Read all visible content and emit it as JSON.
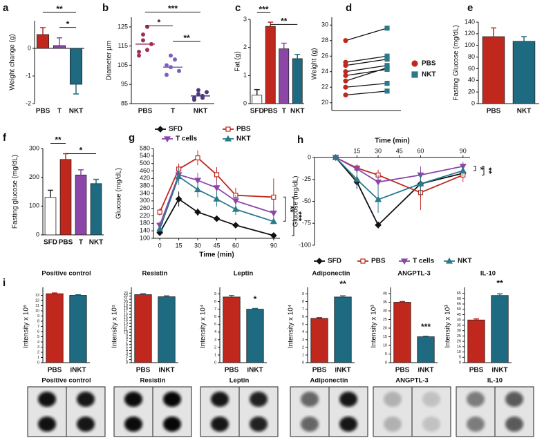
{
  "chart_data": [
    {
      "type": "bar",
      "label": "a",
      "ylabel": "Weight change (g)",
      "categories": [
        "PBS",
        "T",
        "NKT"
      ],
      "values": [
        0.5,
        0.1,
        -1.3
      ],
      "errors": [
        0.25,
        0.28,
        0.35
      ],
      "colors": [
        "#c0281e",
        "#8b46a8",
        "#1e6a80"
      ],
      "ylim": [
        -2,
        1
      ],
      "yticks": [
        -2,
        -1,
        0
      ],
      "annotations": [
        "**",
        "*"
      ]
    },
    {
      "type": "dot",
      "label": "b",
      "ylabel": "Diameter µm",
      "categories": [
        "PBS",
        "T",
        "NKT"
      ],
      "values": [
        [
          112,
          118,
          125,
          116,
          110,
          121,
          113
        ],
        [
          100,
          104,
          108,
          102,
          105,
          110
        ],
        [
          88,
          90,
          89,
          91,
          87,
          92,
          88
        ]
      ],
      "means": [
        116,
        104,
        89
      ],
      "colors": [
        "#a0305a",
        "#7b5fbf",
        "#4b3a7a"
      ],
      "ylim": [
        85,
        130
      ],
      "yticks": [
        85,
        95,
        105,
        115,
        125
      ],
      "annotations": [
        "***",
        "*",
        "**"
      ]
    },
    {
      "type": "bar",
      "label": "c",
      "ylabel": "Fat (g)",
      "categories": [
        "SFD",
        "PBS",
        "T",
        "NKT"
      ],
      "values": [
        0.3,
        2.75,
        1.95,
        1.6
      ],
      "errors": [
        0.2,
        0.15,
        0.2,
        0.15
      ],
      "colors": [
        "#ffffff",
        "#c0281e",
        "#8b46a8",
        "#1e6a80"
      ],
      "ylim": [
        0,
        3
      ],
      "yticks": [
        0,
        1,
        2,
        3
      ],
      "annotations": [
        "***",
        "**"
      ]
    },
    {
      "type": "paired",
      "label": "d",
      "ylabel": "Weight (g)",
      "series": [
        {
          "name": "PBS",
          "color": "#c0281e",
          "marker": "circle",
          "values": [
            28,
            25.2,
            24.8,
            24,
            23.5,
            22.8,
            22,
            21
          ]
        },
        {
          "name": "NKT",
          "color": "#2a7a8a",
          "marker": "square",
          "values": [
            29.6,
            26,
            25.6,
            24.8,
            24.3,
            24.5,
            22.5,
            21.5
          ]
        }
      ],
      "ylim": [
        19,
        31
      ],
      "yticks": [
        20,
        22,
        24,
        26,
        28,
        30
      ]
    },
    {
      "type": "bar",
      "label": "e",
      "ylabel": "Fasting Glucose (mg/dL)",
      "categories": [
        "PBS",
        "NKT"
      ],
      "values": [
        115,
        107
      ],
      "errors": [
        15,
        8
      ],
      "colors": [
        "#c0281e",
        "#1e6a80"
      ],
      "ylim": [
        0,
        140
      ],
      "yticks": [
        0,
        20,
        40,
        60,
        80,
        100,
        120,
        140
      ],
      "annotations": []
    },
    {
      "type": "bar",
      "label": "f",
      "ylabel": "Fasting glucose (mg/dL)",
      "categories": [
        "SFD",
        "PBS",
        "T",
        "NKT"
      ],
      "values": [
        130,
        262,
        208,
        178
      ],
      "errors": [
        25,
        20,
        18,
        15
      ],
      "colors": [
        "#ffffff",
        "#c0281e",
        "#8b46a8",
        "#1e6a80"
      ],
      "ylim": [
        0,
        300
      ],
      "yticks": [
        0,
        100,
        200,
        300
      ],
      "annotations": [
        "**",
        "*"
      ]
    },
    {
      "type": "line",
      "label": "g",
      "ylabel": "Glucose (mg/dL)",
      "xlabel": "Time (min)",
      "x": [
        0,
        15,
        30,
        45,
        60,
        90
      ],
      "xlim": [
        -5,
        95
      ],
      "xticks": [
        0,
        15,
        30,
        45,
        60,
        90
      ],
      "ylim": [
        100,
        580
      ],
      "yticks": [
        100,
        140,
        180,
        220,
        260,
        300,
        340,
        380,
        420,
        460,
        500,
        540,
        580
      ],
      "series": [
        {
          "name": "SFD",
          "color": "#111111",
          "marker": "diamond",
          "values": [
            130,
            310,
            240,
            205,
            170,
            115
          ],
          "errors": [
            15,
            40,
            20,
            15,
            15,
            10
          ]
        },
        {
          "name": "PBS",
          "color": "#c0281e",
          "marker": "square",
          "values": [
            240,
            470,
            530,
            440,
            330,
            320
          ],
          "errors": [
            20,
            30,
            40,
            40,
            40,
            100
          ]
        },
        {
          "name": "T cells",
          "color": "#8b46a8",
          "marker": "tri-down",
          "values": [
            170,
            440,
            410,
            370,
            300,
            235
          ],
          "errors": [
            20,
            40,
            40,
            40,
            30,
            40
          ]
        },
        {
          "name": "NKT",
          "color": "#2a7a8a",
          "marker": "tri-up",
          "values": [
            150,
            430,
            360,
            310,
            255,
            190
          ],
          "errors": [
            15,
            45,
            40,
            40,
            30,
            15
          ]
        }
      ],
      "annotations": [
        "**",
        "***"
      ]
    },
    {
      "type": "line",
      "label": "h",
      "ylabel": "Glucose (mg/dL)",
      "xlabel": "Time (min)",
      "x_axis": "top",
      "x": [
        0,
        15,
        30,
        60,
        90
      ],
      "xlim": [
        -15,
        95
      ],
      "xticks": [
        15,
        30,
        45,
        60,
        90
      ],
      "ylim": [
        -100,
        0
      ],
      "yticks": [
        0,
        -25,
        -50,
        -75,
        -100
      ],
      "series": [
        {
          "name": "SFD",
          "color": "#111111",
          "marker": "diamond",
          "values": [
            0,
            -28,
            -77,
            -30,
            -18
          ],
          "errors": [
            0,
            8,
            4,
            15,
            5
          ]
        },
        {
          "name": "PBS",
          "color": "#c0281e",
          "marker": "square",
          "values": [
            0,
            -12,
            -20,
            -40,
            -20
          ],
          "errors": [
            0,
            4,
            6,
            20,
            8
          ]
        },
        {
          "name": "T cells",
          "color": "#8b46a8",
          "marker": "tri-down",
          "values": [
            0,
            -13,
            -28,
            -20,
            -10
          ],
          "errors": [
            0,
            5,
            8,
            10,
            5
          ]
        },
        {
          "name": "NKT",
          "color": "#2a7a8a",
          "marker": "tri-up",
          "values": [
            0,
            -25,
            -48,
            -30,
            -15
          ],
          "errors": [
            0,
            10,
            15,
            12,
            6
          ]
        }
      ],
      "annotations": [
        "*",
        "**"
      ]
    },
    {
      "type": "bar",
      "label": "i",
      "title": "Positive control",
      "ylabel": "Intensity x 10⁶",
      "categories": [
        "PBS",
        "iNKT"
      ],
      "values": [
        13.3,
        13.0
      ],
      "errors": [
        0.15,
        0.1
      ],
      "colors": [
        "#c0281e",
        "#1e6a80"
      ],
      "ylim": [
        0,
        14
      ],
      "yticks": [
        0,
        1,
        2,
        3,
        4,
        5,
        6,
        7,
        8,
        9,
        10,
        11,
        12,
        13
      ],
      "annotations": []
    },
    {
      "type": "bar",
      "title": "Resistin",
      "ylabel": "Intensity x 10⁵",
      "categories": [
        "PBS",
        "iNKT"
      ],
      "values": [
        22.5,
        21.8
      ],
      "errors": [
        0.3,
        0.3
      ],
      "colors": [
        "#c0281e",
        "#1e6a80"
      ],
      "ylim": [
        0,
        24
      ],
      "yticks": [
        0,
        1,
        2,
        3,
        4,
        5,
        6,
        7,
        8,
        9,
        10,
        11,
        12,
        13,
        14,
        15,
        16,
        17,
        18,
        19,
        20,
        21,
        22,
        23
      ],
      "annotations": []
    },
    {
      "type": "bar",
      "title": "Leptin",
      "ylabel": "Intensity x 10⁴",
      "categories": [
        "PBS",
        "iNKT"
      ],
      "values": [
        8.6,
        7.0
      ],
      "errors": [
        0.2,
        0.1
      ],
      "colors": [
        "#c0281e",
        "#1e6a80"
      ],
      "ylim": [
        0,
        9.5
      ],
      "yticks": [
        0,
        1,
        2,
        3,
        4,
        5,
        6,
        7,
        8,
        9
      ],
      "annotations": [
        "*"
      ]
    },
    {
      "type": "bar",
      "title": "Adiponectin",
      "ylabel": "Intensity x 10⁴",
      "categories": [
        "PBS",
        "iNKT"
      ],
      "values": [
        5.8,
        8.6
      ],
      "errors": [
        0.1,
        0.15
      ],
      "colors": [
        "#c0281e",
        "#1e6a80"
      ],
      "ylim": [
        0,
        9.5
      ],
      "yticks": [
        0,
        1,
        2,
        3,
        4,
        5,
        6,
        7,
        8,
        9
      ],
      "annotations": [
        "**"
      ]
    },
    {
      "type": "bar",
      "title": "ANGPTL-3",
      "ylabel": "Intensity x 10³",
      "categories": [
        "PBS",
        "iNKT"
      ],
      "values": [
        35,
        15
      ],
      "errors": [
        0.4,
        0.3
      ],
      "colors": [
        "#c0281e",
        "#1e6a80"
      ],
      "ylim": [
        0,
        42
      ],
      "yticks": [
        0,
        5,
        10,
        15,
        20,
        25,
        30,
        35,
        40
      ],
      "annotations": [
        "***"
      ]
    },
    {
      "type": "bar",
      "title": "IL-10",
      "ylabel": "Intensity x 10³",
      "categories": [
        "PBS",
        "iNKT"
      ],
      "values": [
        40,
        63
      ],
      "errors": [
        1,
        1.5
      ],
      "colors": [
        "#c0281e",
        "#1e6a80"
      ],
      "ylim": [
        0,
        68
      ],
      "yticks": [
        0,
        5,
        10,
        15,
        20,
        25,
        30,
        35,
        40,
        45,
        50,
        55,
        60,
        65
      ],
      "annotations": [
        "**"
      ]
    },
    {
      "type": "blot",
      "titles": [
        "Positive control",
        "Resistin",
        "Leptin",
        "Adiponectin",
        "ANGPTL-3",
        "IL-10"
      ]
    }
  ]
}
